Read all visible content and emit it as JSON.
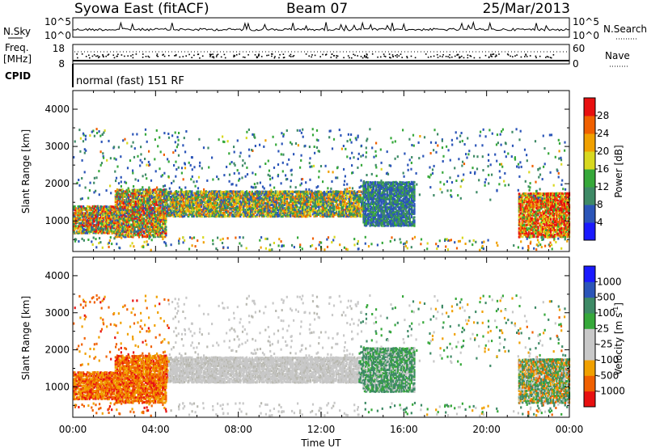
{
  "header": {
    "title": "Syowa East (fitACF)",
    "beam": "Beam 07",
    "date": "25/Mar/2013"
  },
  "panels": {
    "nsky_label": "N.Sky",
    "nsearch_label": "N.Search",
    "freq_label_1": "Freq.",
    "freq_label_2": "[MHz]",
    "nave_label": "Nave",
    "cpid_label": "CPID",
    "cpid_text": "normal (fast) 151 RF",
    "nsky_ticks": [
      "10^5",
      "10^0"
    ],
    "nsearch_ticks": [
      "10^5",
      "10^0"
    ],
    "freq_ticks": [
      "18",
      "8"
    ],
    "nave_ticks": [
      "60",
      "0"
    ]
  },
  "colors": {
    "power": [
      "#1a1aff",
      "#2b55b8",
      "#3e8a66",
      "#36a83a",
      "#d8d820",
      "#f0a000",
      "#f06000",
      "#e81010"
    ],
    "velocity": [
      "#e81010",
      "#f06000",
      "#f0a000",
      "#c8c8c8",
      "#c8c8c8",
      "#36a83a",
      "#3e8a66",
      "#2b55b8",
      "#1a1aff"
    ]
  },
  "chart_data": [
    {
      "type": "heatmap",
      "name": "power",
      "xlabel": "",
      "ylabel": "Slant Range [km]",
      "xlim": [
        "00:00",
        "24:00"
      ],
      "ylim": [
        180,
        4500
      ],
      "yticks": [
        1000,
        2000,
        3000,
        4000
      ],
      "colorbar": {
        "label": "Power [dB]",
        "ticks": [
          4,
          8,
          12,
          16,
          20,
          24,
          28
        ],
        "range": [
          0,
          32
        ]
      },
      "echo_bands": [
        {
          "t0": 0.0,
          "t1": 2.0,
          "r0": 700,
          "r1": 1450,
          "level": "mixed"
        },
        {
          "t0": 2.0,
          "t1": 4.5,
          "r0": 600,
          "r1": 1900,
          "level": "mixed"
        },
        {
          "t0": 4.5,
          "t1": 14.0,
          "r0": 1150,
          "r1": 1850,
          "level": "mid"
        },
        {
          "t0": 14.0,
          "t1": 16.5,
          "r0": 900,
          "r1": 2100,
          "level": "low"
        },
        {
          "t0": 21.5,
          "t1": 24.0,
          "r0": 600,
          "r1": 1800,
          "level": "high"
        }
      ]
    },
    {
      "type": "heatmap",
      "name": "velocity",
      "xlabel": "Time UT",
      "ylabel": "Slant Range [km]",
      "xticks": [
        "00:00",
        "04:00",
        "08:00",
        "12:00",
        "16:00",
        "20:00",
        "00:00"
      ],
      "ylim": [
        180,
        4500
      ],
      "yticks": [
        1000,
        2000,
        3000,
        4000
      ],
      "colorbar": {
        "label": "Velocity [m s-1]",
        "ticks": [
          1000,
          500,
          100,
          25,
          -25,
          -100,
          -500,
          -1000
        ]
      }
    }
  ]
}
